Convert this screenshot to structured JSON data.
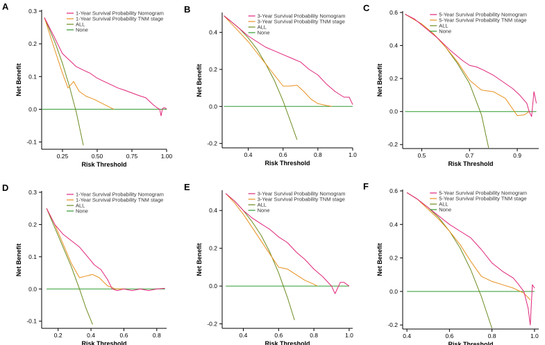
{
  "figure": {
    "description_free": true,
    "colors": {
      "nomogram": "#e0247a",
      "tnm": "#e8901e",
      "all": "#6b8a1e",
      "none": "#2e9a2e"
    }
  },
  "chart_data": [
    {
      "panel": "A",
      "type": "line",
      "xlabel": "Risk Threshold",
      "ylabel": "Net Benefit",
      "xlim": [
        0.1,
        1.0
      ],
      "ylim": [
        -0.12,
        0.3
      ],
      "xticks": [
        "0.25",
        "0.50",
        "0.75",
        "1.00"
      ],
      "xtick_values": [
        0.25,
        0.5,
        0.75,
        1.0
      ],
      "yticks": [
        "-0.1",
        "0.0",
        "0.1",
        "0.2",
        "0.3"
      ],
      "ytick_values": [
        -0.1,
        0.0,
        0.1,
        0.2,
        0.3
      ],
      "legend": [
        "1-Year Survival Probability Nomogram",
        "1-Year Survival Probability TNM stage",
        "ALL",
        "None"
      ],
      "series": [
        {
          "name": "1-Year Survival Probability Nomogram",
          "x": [
            0.12,
            0.18,
            0.25,
            0.3,
            0.35,
            0.4,
            0.45,
            0.5,
            0.55,
            0.6,
            0.65,
            0.7,
            0.75,
            0.8,
            0.85,
            0.9,
            0.93,
            0.95,
            0.96,
            0.97,
            0.98,
            1.0
          ],
          "y": [
            0.28,
            0.23,
            0.17,
            0.15,
            0.13,
            0.12,
            0.11,
            0.095,
            0.085,
            0.075,
            0.065,
            0.058,
            0.05,
            0.042,
            0.035,
            0.015,
            0.005,
            0.0,
            -0.02,
            0.002,
            0.005,
            0.002
          ]
        },
        {
          "name": "1-Year Survival Probability TNM stage",
          "x": [
            0.12,
            0.18,
            0.25,
            0.29,
            0.33,
            0.37,
            0.42,
            0.48,
            0.55,
            0.62
          ],
          "y": [
            0.28,
            0.2,
            0.11,
            0.065,
            0.085,
            0.055,
            0.04,
            0.03,
            0.015,
            0.0
          ]
        },
        {
          "name": "ALL",
          "x": [
            0.12,
            0.15,
            0.2,
            0.25,
            0.3,
            0.35,
            0.4
          ],
          "y": [
            0.28,
            0.25,
            0.2,
            0.14,
            0.07,
            -0.01,
            -0.11
          ]
        },
        {
          "name": "None",
          "x": [
            0.1,
            1.0
          ],
          "y": [
            0.0,
            0.0
          ]
        }
      ]
    },
    {
      "panel": "B",
      "type": "line",
      "xlabel": "Risk Threshold",
      "ylabel": "Net Benefit",
      "xlim": [
        0.25,
        1.0
      ],
      "ylim": [
        -0.22,
        0.5
      ],
      "xticks": [
        "0.4",
        "0.6",
        "0.8",
        "1.0"
      ],
      "xtick_values": [
        0.4,
        0.6,
        0.8,
        1.0
      ],
      "yticks": [
        "-0.2",
        "0.0",
        "0.2",
        "0.4"
      ],
      "ytick_values": [
        -0.2,
        0.0,
        0.2,
        0.4
      ],
      "legend": [
        "3-Year Survival Probability Nomogram",
        "3-Year Survival Probability TNM stage",
        "ALL",
        "None"
      ],
      "series": [
        {
          "name": "3-Year Survival Probability Nomogram",
          "x": [
            0.26,
            0.3,
            0.35,
            0.4,
            0.45,
            0.5,
            0.55,
            0.6,
            0.65,
            0.7,
            0.75,
            0.8,
            0.85,
            0.9,
            0.95,
            0.98,
            1.0
          ],
          "y": [
            0.49,
            0.46,
            0.42,
            0.38,
            0.35,
            0.32,
            0.3,
            0.28,
            0.26,
            0.24,
            0.2,
            0.17,
            0.12,
            0.08,
            0.05,
            0.05,
            0.01
          ]
        },
        {
          "name": "3-Year Survival Probability TNM stage",
          "x": [
            0.26,
            0.3,
            0.35,
            0.4,
            0.45,
            0.5,
            0.55,
            0.6,
            0.64,
            0.68,
            0.72,
            0.76,
            0.8,
            0.85,
            0.88
          ],
          "y": [
            0.49,
            0.45,
            0.4,
            0.35,
            0.29,
            0.23,
            0.17,
            0.11,
            0.11,
            0.115,
            0.08,
            0.04,
            0.015,
            0.005,
            0.0
          ]
        },
        {
          "name": "ALL",
          "x": [
            0.26,
            0.3,
            0.35,
            0.4,
            0.45,
            0.5,
            0.55,
            0.6,
            0.65,
            0.68
          ],
          "y": [
            0.49,
            0.46,
            0.42,
            0.37,
            0.31,
            0.23,
            0.14,
            0.03,
            -0.1,
            -0.18
          ]
        },
        {
          "name": "None",
          "x": [
            0.26,
            1.0
          ],
          "y": [
            0.0,
            0.0
          ]
        }
      ]
    },
    {
      "panel": "C",
      "type": "line",
      "xlabel": "Risk Threshold",
      "ylabel": "Net Benefit",
      "xlim": [
        0.42,
        0.99
      ],
      "ylim": [
        -0.22,
        0.6
      ],
      "xticks": [
        "0.5",
        "0.7",
        "0.9"
      ],
      "xtick_values": [
        0.5,
        0.7,
        0.9
      ],
      "yticks": [
        "-0.2",
        "0.0",
        "0.2",
        "0.4",
        "0.6"
      ],
      "ytick_values": [
        -0.2,
        0.0,
        0.2,
        0.4,
        0.6
      ],
      "legend": [
        "5-Year Survival Probability Nomogram",
        "5-Year Survival Probability TNM stage",
        "ALL",
        "None"
      ],
      "series": [
        {
          "name": "5-Year Survival Probability Nomogram",
          "x": [
            0.43,
            0.47,
            0.52,
            0.57,
            0.62,
            0.67,
            0.7,
            0.73,
            0.76,
            0.8,
            0.84,
            0.88,
            0.91,
            0.94,
            0.95,
            0.96,
            0.97,
            0.98
          ],
          "y": [
            0.59,
            0.56,
            0.5,
            0.44,
            0.37,
            0.31,
            0.28,
            0.27,
            0.25,
            0.22,
            0.18,
            0.14,
            0.1,
            0.05,
            0.0,
            -0.03,
            0.12,
            0.05
          ]
        },
        {
          "name": "5-Year Survival Probability TNM stage",
          "x": [
            0.43,
            0.5,
            0.55,
            0.6,
            0.65,
            0.7,
            0.75,
            0.8,
            0.85,
            0.9,
            0.93,
            0.95
          ],
          "y": [
            0.59,
            0.53,
            0.47,
            0.39,
            0.3,
            0.19,
            0.13,
            0.12,
            0.08,
            -0.025,
            -0.02,
            0.0
          ]
        },
        {
          "name": "ALL",
          "x": [
            0.43,
            0.5,
            0.55,
            0.6,
            0.65,
            0.7,
            0.75,
            0.78
          ],
          "y": [
            0.59,
            0.53,
            0.47,
            0.39,
            0.29,
            0.17,
            -0.02,
            -0.22
          ]
        },
        {
          "name": "None",
          "x": [
            0.43,
            0.98
          ],
          "y": [
            0.0,
            0.0
          ]
        }
      ]
    },
    {
      "panel": "D",
      "type": "line",
      "xlabel": "Risk Threshold",
      "ylabel": "Net Benefit",
      "xlim": [
        0.1,
        0.86
      ],
      "ylim": [
        -0.12,
        0.3
      ],
      "xticks": [
        "0.2",
        "0.4",
        "0.6",
        "0.8"
      ],
      "xtick_values": [
        0.2,
        0.4,
        0.6,
        0.8
      ],
      "yticks": [
        "-0.1",
        "0.0",
        "0.1",
        "0.2",
        "0.3"
      ],
      "ytick_values": [
        -0.1,
        0.0,
        0.1,
        0.2,
        0.3
      ],
      "legend": [
        "1-Year Survival Probability Nomogram",
        "1-Year Survival Probability TNM stage",
        "ALL",
        "None"
      ],
      "series": [
        {
          "name": "1-Year Survival Probability Nomogram",
          "x": [
            0.13,
            0.18,
            0.23,
            0.28,
            0.33,
            0.38,
            0.42,
            0.46,
            0.5,
            0.53,
            0.56,
            0.6,
            0.65,
            0.7,
            0.75,
            0.8,
            0.85
          ],
          "y": [
            0.25,
            0.2,
            0.17,
            0.15,
            0.13,
            0.1,
            0.075,
            0.06,
            0.03,
            0.0,
            -0.005,
            0.0,
            -0.005,
            0.0,
            -0.005,
            0.0,
            0.002
          ]
        },
        {
          "name": "1-Year Survival Probability TNM stage",
          "x": [
            0.13,
            0.18,
            0.23,
            0.28,
            0.33,
            0.37,
            0.41,
            0.45,
            0.5,
            0.55,
            0.6
          ],
          "y": [
            0.25,
            0.2,
            0.14,
            0.08,
            0.035,
            0.04,
            0.045,
            0.035,
            0.01,
            0.0,
            0.0
          ]
        },
        {
          "name": "ALL",
          "x": [
            0.13,
            0.18,
            0.23,
            0.28,
            0.33,
            0.37,
            0.41
          ],
          "y": [
            0.25,
            0.19,
            0.13,
            0.07,
            0.0,
            -0.06,
            -0.11
          ]
        },
        {
          "name": "None",
          "x": [
            0.13,
            0.85
          ],
          "y": [
            0.0,
            0.0
          ]
        }
      ]
    },
    {
      "panel": "E",
      "type": "line",
      "xlabel": "Risk Threshold",
      "ylabel": "Net Benefit",
      "xlim": [
        0.28,
        1.02
      ],
      "ylim": [
        -0.22,
        0.5
      ],
      "xticks": [
        "0.4",
        "0.6",
        "0.8",
        "1.0"
      ],
      "xtick_values": [
        0.4,
        0.6,
        0.8,
        1.0
      ],
      "yticks": [
        "-0.2",
        "0.0",
        "0.2",
        "0.4"
      ],
      "ytick_values": [
        -0.2,
        0.0,
        0.2,
        0.4
      ],
      "legend": [
        "3-Year Survival Probability Nomogram",
        "3-Year Survival Probability TNM stage",
        "ALL",
        "None"
      ],
      "series": [
        {
          "name": "3-Year Survival Probability Nomogram",
          "x": [
            0.3,
            0.35,
            0.4,
            0.45,
            0.5,
            0.55,
            0.6,
            0.65,
            0.7,
            0.75,
            0.8,
            0.85,
            0.9,
            0.92,
            0.95,
            0.97,
            1.0
          ],
          "y": [
            0.49,
            0.45,
            0.4,
            0.36,
            0.33,
            0.3,
            0.26,
            0.23,
            0.18,
            0.14,
            0.09,
            0.05,
            0.0,
            -0.04,
            0.02,
            0.02,
            0.0
          ]
        },
        {
          "name": "3-Year Survival Probability TNM stage",
          "x": [
            0.3,
            0.35,
            0.4,
            0.45,
            0.5,
            0.55,
            0.6,
            0.65,
            0.7,
            0.75,
            0.8,
            0.82
          ],
          "y": [
            0.49,
            0.44,
            0.38,
            0.31,
            0.24,
            0.17,
            0.1,
            0.09,
            0.06,
            0.03,
            0.01,
            0.0
          ]
        },
        {
          "name": "ALL",
          "x": [
            0.3,
            0.35,
            0.4,
            0.45,
            0.5,
            0.55,
            0.6,
            0.65,
            0.69
          ],
          "y": [
            0.49,
            0.45,
            0.4,
            0.34,
            0.27,
            0.18,
            0.07,
            -0.06,
            -0.18
          ]
        },
        {
          "name": "None",
          "x": [
            0.3,
            1.0
          ],
          "y": [
            0.0,
            0.0
          ]
        }
      ]
    },
    {
      "panel": "F",
      "type": "line",
      "xlabel": "Risk Threshold",
      "ylabel": "Net Benefit",
      "xlim": [
        0.38,
        1.02
      ],
      "ylim": [
        -0.22,
        0.6
      ],
      "xticks": [
        "0.4",
        "0.6",
        "0.8",
        "1.0"
      ],
      "xtick_values": [
        0.4,
        0.6,
        0.8,
        1.0
      ],
      "yticks": [
        "-0.2",
        "0.0",
        "0.2",
        "0.4",
        "0.6"
      ],
      "ytick_values": [
        -0.2,
        0.0,
        0.2,
        0.4,
        0.6
      ],
      "legend": [
        "5-Year Survival Probability Nomogram",
        "5-Year Survival Probability TNM stage",
        "ALL",
        "None"
      ],
      "series": [
        {
          "name": "5-Year Survival Probability Nomogram",
          "x": [
            0.4,
            0.45,
            0.5,
            0.55,
            0.6,
            0.65,
            0.7,
            0.75,
            0.8,
            0.85,
            0.9,
            0.92,
            0.95,
            0.97,
            0.98,
            0.99,
            1.0
          ],
          "y": [
            0.59,
            0.55,
            0.5,
            0.45,
            0.4,
            0.36,
            0.32,
            0.25,
            0.17,
            0.12,
            0.08,
            0.05,
            0.0,
            -0.1,
            -0.2,
            0.04,
            0.02
          ]
        },
        {
          "name": "5-Year Survival Probability TNM stage",
          "x": [
            0.4,
            0.45,
            0.5,
            0.55,
            0.6,
            0.65,
            0.7,
            0.75,
            0.8,
            0.85,
            0.9,
            0.95,
            0.98
          ],
          "y": [
            0.59,
            0.55,
            0.49,
            0.43,
            0.36,
            0.28,
            0.18,
            0.09,
            0.06,
            0.04,
            0.02,
            -0.01,
            -0.05
          ]
        },
        {
          "name": "ALL",
          "x": [
            0.4,
            0.45,
            0.5,
            0.55,
            0.6,
            0.65,
            0.7,
            0.75,
            0.8
          ],
          "y": [
            0.59,
            0.55,
            0.5,
            0.44,
            0.36,
            0.26,
            0.13,
            -0.03,
            -0.22
          ]
        },
        {
          "name": "None",
          "x": [
            0.4,
            1.0
          ],
          "y": [
            0.0,
            0.0
          ]
        }
      ]
    }
  ]
}
